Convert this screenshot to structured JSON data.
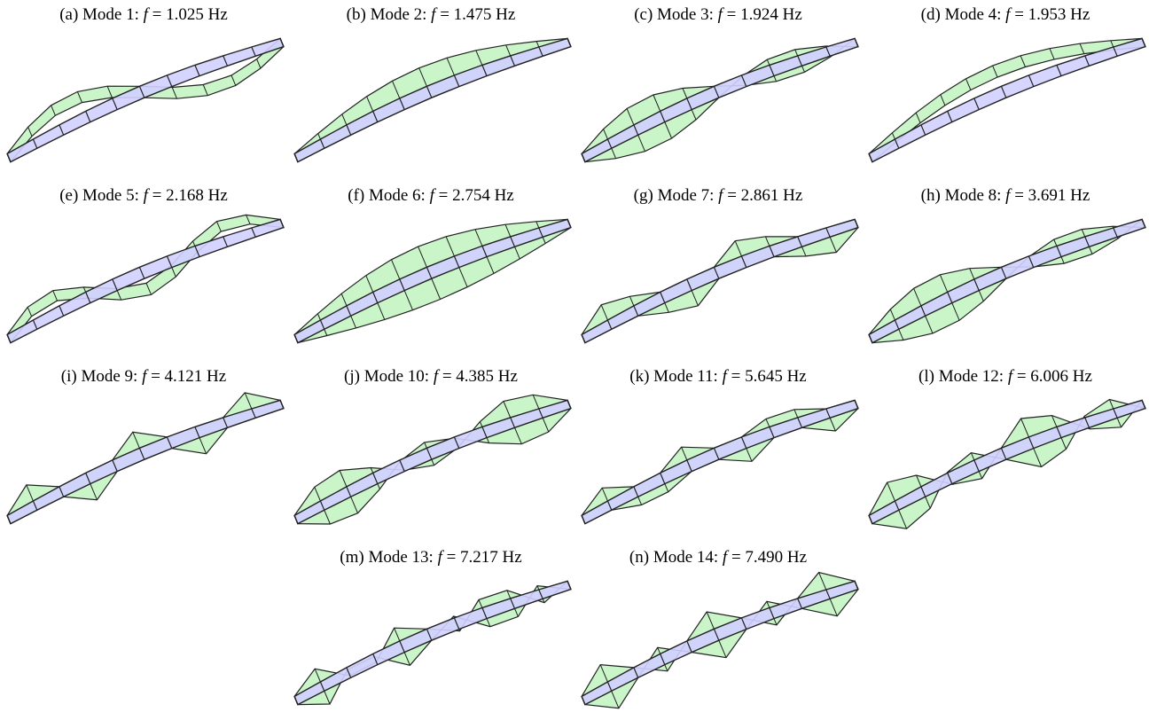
{
  "colors": {
    "deck_fill": "#d2d0ff",
    "mode_fill": "#c9f5c9",
    "edge": "#222222"
  },
  "panels": [
    {
      "tag": "(a)",
      "mode": "Mode 1:",
      "f_symbol": "f",
      "value": "= 1.025 Hz",
      "profile": "vertical",
      "halfwaves": 2,
      "amp": 0.9
    },
    {
      "tag": "(b)",
      "mode": "Mode 2:",
      "f_symbol": "f",
      "value": "= 1.475 Hz",
      "profile": "lateral",
      "halfwaves": 1,
      "amp": 0.8
    },
    {
      "tag": "(c)",
      "mode": "Mode 3:",
      "f_symbol": "f",
      "value": "= 1.924 Hz",
      "profile": "torsion",
      "halfwaves": 2,
      "amp": 0.75
    },
    {
      "tag": "(d)",
      "mode": "Mode 4:",
      "f_symbol": "f",
      "value": "= 1.953 Hz",
      "profile": "vertical",
      "halfwaves": 1,
      "amp": 0.9
    },
    {
      "tag": "(e)",
      "mode": "Mode 5:",
      "f_symbol": "f",
      "value": "= 2.168 Hz",
      "profile": "vertical",
      "halfwaves": 3,
      "amp": 0.7
    },
    {
      "tag": "(f)",
      "mode": "Mode 6:",
      "f_symbol": "f",
      "value": "= 2.754 Hz",
      "profile": "torsion",
      "halfwaves": 1,
      "amp": 0.9
    },
    {
      "tag": "(g)",
      "mode": "Mode 7:",
      "f_symbol": "f",
      "value": "= 2.861 Hz",
      "profile": "lateral",
      "halfwaves": 4,
      "amp": 0.7
    },
    {
      "tag": "(h)",
      "mode": "Mode 8:",
      "f_symbol": "f",
      "value": "= 3.691 Hz",
      "profile": "torsion",
      "halfwaves": 2,
      "amp": 0.8
    },
    {
      "tag": "(i)",
      "mode": "Mode 9:",
      "f_symbol": "f",
      "value": "= 4.121 Hz",
      "profile": "lateral",
      "halfwaves": 5,
      "amp": 0.7
    },
    {
      "tag": "(j)",
      "mode": "Mode 10:",
      "f_symbol": "f",
      "value": "= 4.385 Hz",
      "profile": "torsion",
      "halfwaves": 3,
      "amp": 0.75
    },
    {
      "tag": "(k)",
      "mode": "Mode 11:",
      "f_symbol": "f",
      "value": "= 5.645 Hz",
      "profile": "lateral",
      "halfwaves": 6,
      "amp": 0.6
    },
    {
      "tag": "(l)",
      "mode": "Mode 12:",
      "f_symbol": "f",
      "value": "= 6.006 Hz",
      "profile": "torsion",
      "halfwaves": 4,
      "amp": 0.85
    },
    {
      "tag": "(m)",
      "mode": "Mode 13:",
      "f_symbol": "f",
      "value": "= 7.217 Hz",
      "profile": "torsion",
      "halfwaves": 6,
      "amp": 0.6
    },
    {
      "tag": "(n)",
      "mode": "Mode 14:",
      "f_symbol": "f",
      "value": "= 7.490 Hz",
      "profile": "torsion",
      "halfwaves": 5,
      "amp": 0.75
    }
  ]
}
